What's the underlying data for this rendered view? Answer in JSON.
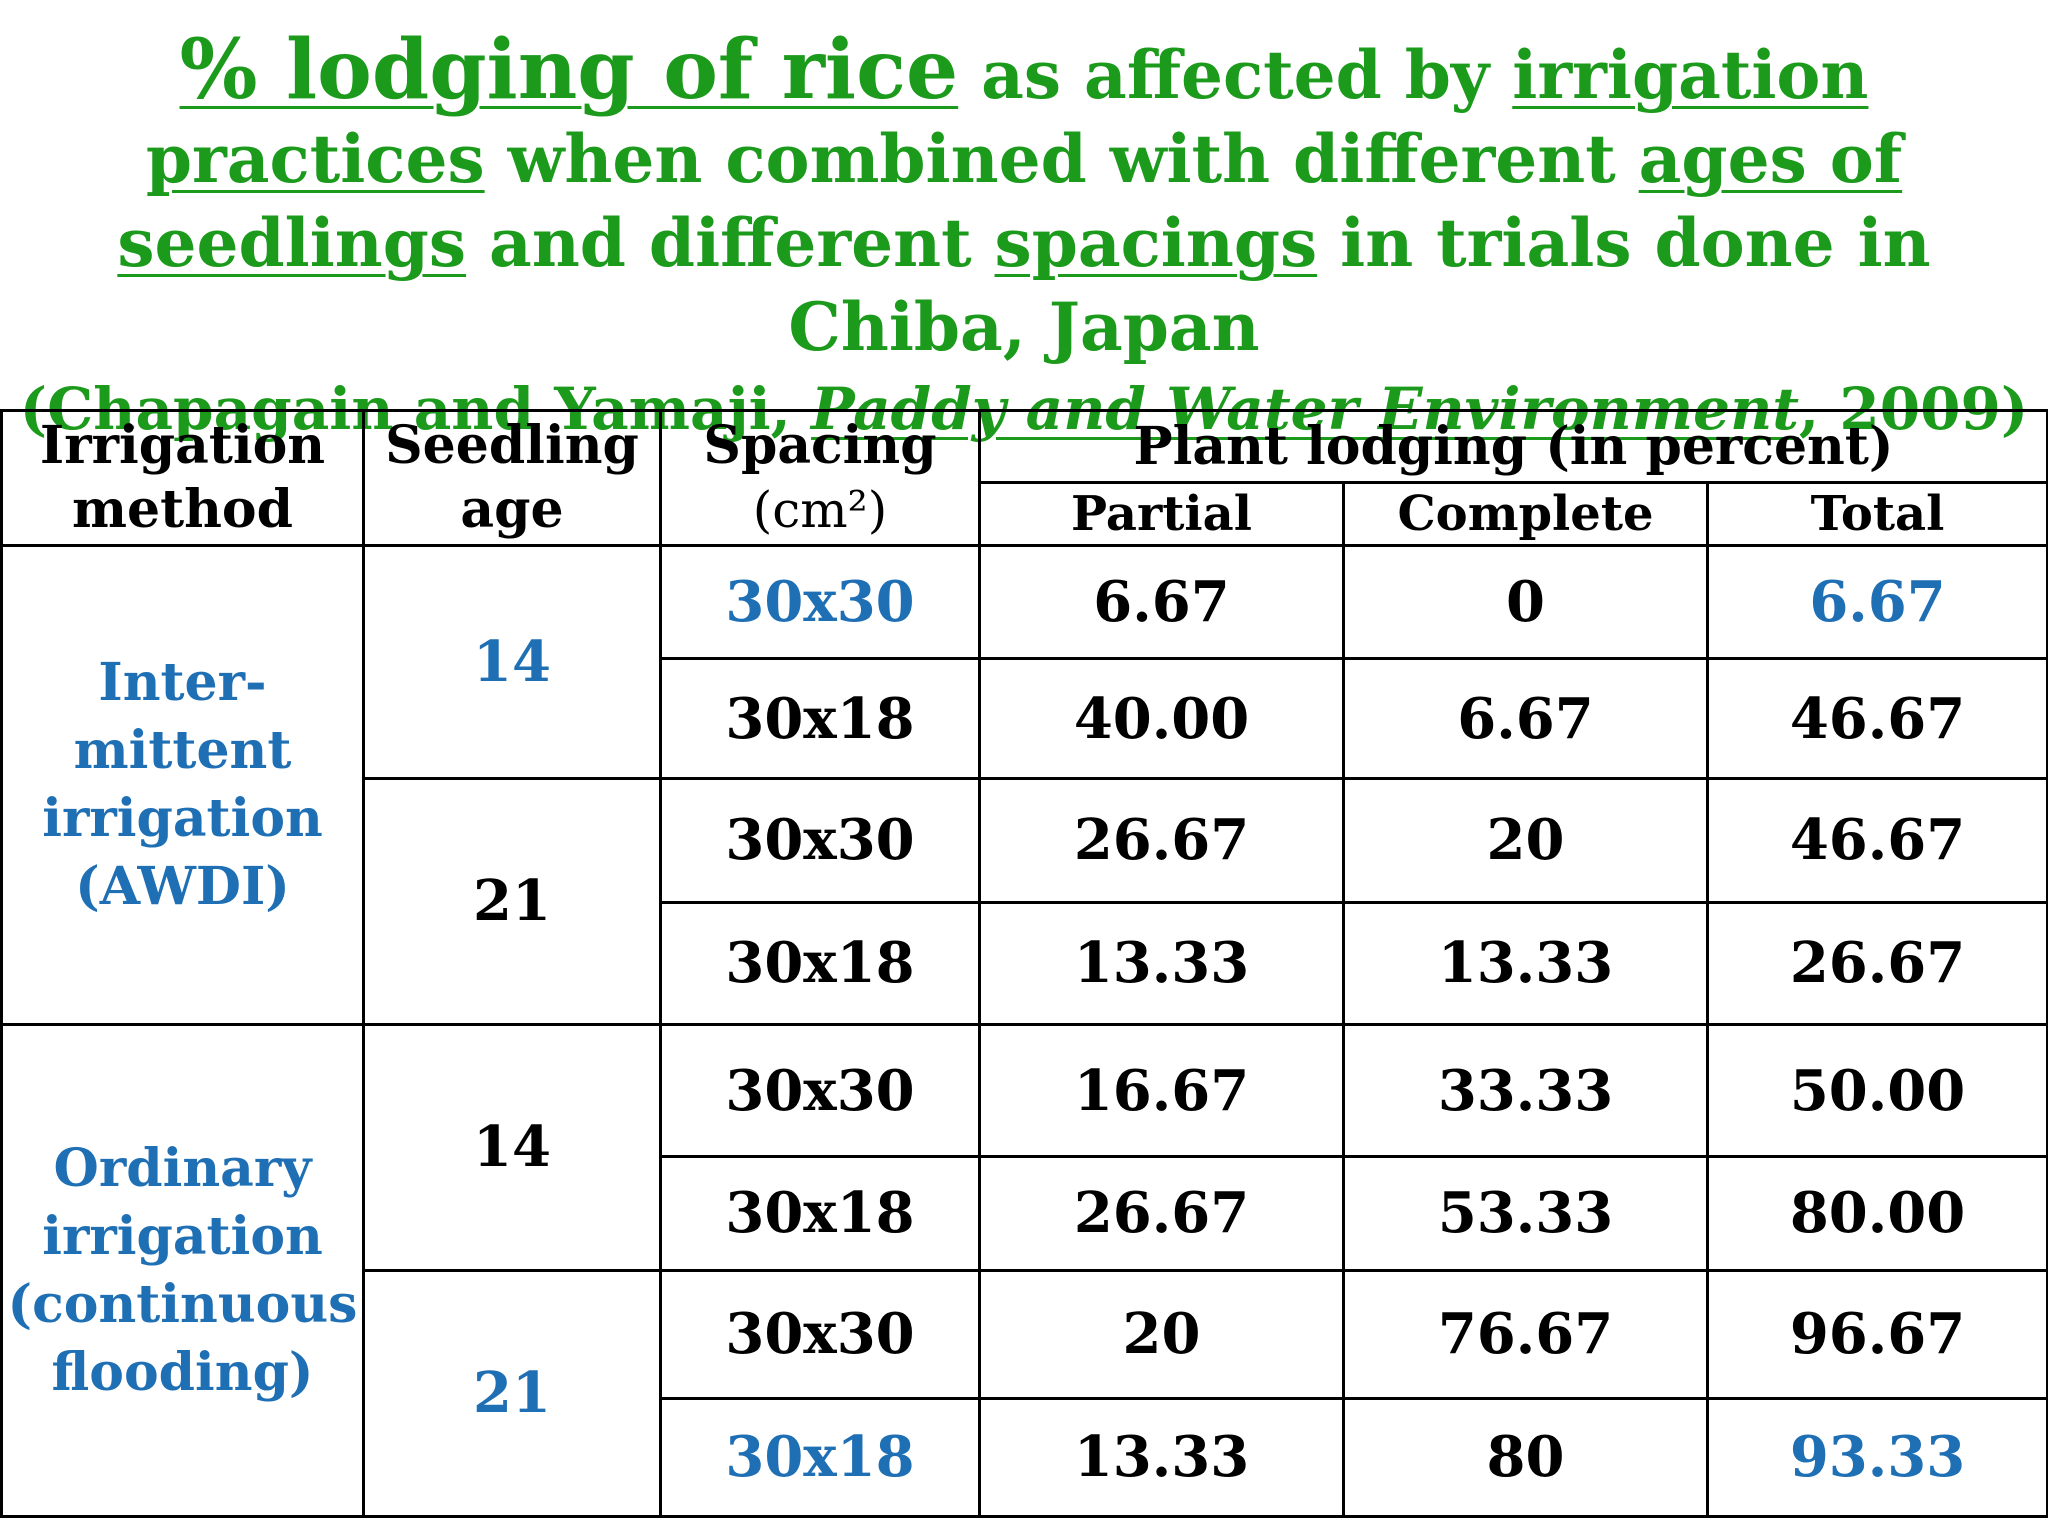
{
  "title": {
    "part1": "% lodging of rice",
    "part2": " as affected by ",
    "part3": "irrigation practices",
    "part4": " when combined with different ",
    "part5": "ages of seedlings",
    "part6": " and different ",
    "part7": "spacings",
    "part8": " in trials done in Chiba, Japan",
    "citation_a": "(Chapagain and Yamaji, ",
    "citation_journal": "Paddy and Water Environment",
    "citation_b": ", 2009)"
  },
  "table": {
    "headers": {
      "irrigation_method": "Irrigation method",
      "seedling_age": "Seedling age",
      "spacing": "Spacing",
      "spacing_unit": "(cm²)",
      "plant_lodging": "Plant lodging (in percent)",
      "partial": "Partial",
      "complete": "Complete",
      "total": "Total"
    },
    "methods": [
      "Inter-mittent irrigation (AWDI)",
      "Ordinary irrigation (continuous flooding)"
    ],
    "ages": [
      "14",
      "21",
      "14",
      "21"
    ],
    "rows": [
      {
        "spacing": "30x30",
        "partial": "6.67",
        "complete": "0",
        "total": "6.67"
      },
      {
        "spacing": "30x18",
        "partial": "40.00",
        "complete": "6.67",
        "total": "46.67"
      },
      {
        "spacing": "30x30",
        "partial": "26.67",
        "complete": "20",
        "total": "46.67"
      },
      {
        "spacing": "30x18",
        "partial": "13.33",
        "complete": "13.33",
        "total": "26.67"
      },
      {
        "spacing": "30x30",
        "partial": "16.67",
        "complete": "33.33",
        "total": "50.00"
      },
      {
        "spacing": "30x18",
        "partial": "26.67",
        "complete": "53.33",
        "total": "80.00"
      },
      {
        "spacing": "30x30",
        "partial": "20",
        "complete": "76.67",
        "total": "96.67"
      },
      {
        "spacing": "30x18",
        "partial": "13.33",
        "complete": "80",
        "total": "93.33"
      }
    ]
  },
  "colors": {
    "title": "#1b9a1b",
    "highlight": "#1f6fb5",
    "text": "#000000"
  }
}
